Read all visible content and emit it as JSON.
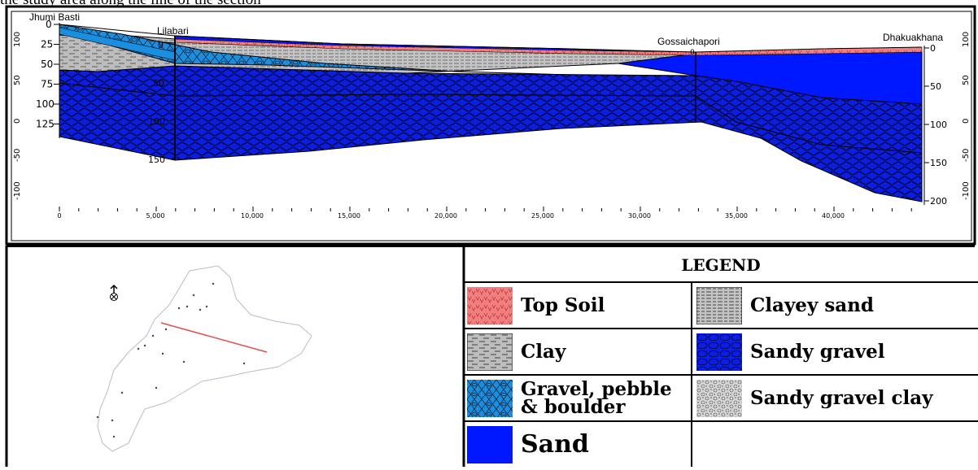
{
  "caption": "the study area along the line of the section",
  "section": {
    "locations": [
      {
        "name": "Jhumi Basti",
        "distance_m": 0
      },
      {
        "name": "Lilabari",
        "distance_m": 5800
      },
      {
        "name": "Gossaichapori",
        "distance_m": 32600
      },
      {
        "name": "Dhakuakhana",
        "distance_m": 44500
      }
    ],
    "x_ticks": [
      "0",
      "5,000",
      "10,000",
      "15,000",
      "20,000",
      "25,000",
      "30,000",
      "35,000",
      "40,000"
    ],
    "left_depth_ticks": [
      "0",
      "25",
      "50",
      "75",
      "100",
      "125"
    ],
    "left_outer_ticks": [
      "100",
      "50",
      "0",
      "-50",
      "-100"
    ],
    "right_depth_ticks": [
      "0",
      "50",
      "100",
      "150",
      "200"
    ],
    "right_outer_ticks": [
      "100",
      "50",
      "0",
      "-50",
      "-100"
    ],
    "lilabari_log_ticks": [
      "0",
      "50",
      "100",
      "150"
    ],
    "gossaichapori_log_tick": "0",
    "layers": [
      "Top Soil",
      "Clayey sand",
      "Clay",
      "Gravel, pebble & boulder",
      "Sand",
      "Sandy gravel"
    ]
  },
  "legend": {
    "title": "LEGEND",
    "items": [
      {
        "label": "Top Soil",
        "pattern": "top-soil",
        "color": "#f08080"
      },
      {
        "label": "Clayey sand",
        "pattern": "clayey-sand",
        "color": "#c0c0c0"
      },
      {
        "label": "Clay",
        "pattern": "clay",
        "color": "#c0c0c0"
      },
      {
        "label": "Sandy gravel",
        "pattern": "sandy-gravel",
        "color": "#0a1ee6"
      },
      {
        "label": "Gravel, pebble & boulder",
        "pattern": "gravel-pebble-boulder",
        "color": "#1a8fe0"
      },
      {
        "label": "Sandy gravel clay",
        "pattern": "sandy-gravel-clay",
        "color": "#d0d0d0"
      },
      {
        "label": "Sand",
        "pattern": "sand",
        "color": "#0018ff"
      }
    ]
  },
  "map": {
    "north_arrow": "N",
    "section_line_color": "#e05050",
    "boundary_color": "#b8bccc"
  }
}
